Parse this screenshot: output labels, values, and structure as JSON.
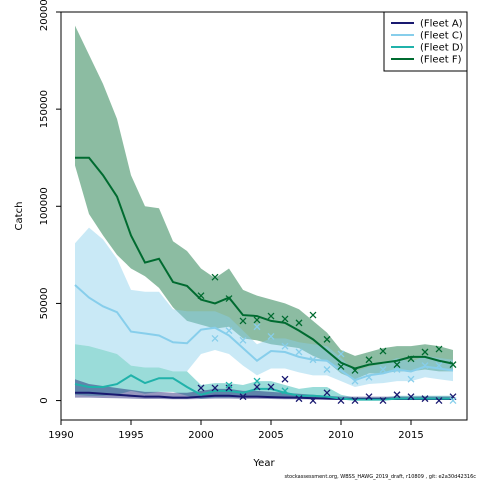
{
  "chart_data": {
    "type": "line",
    "title": "",
    "xlabel": "Year",
    "ylabel": "Catch",
    "xlim": [
      1990,
      2019
    ],
    "ylim": [
      -10000,
      200000
    ],
    "x_ticks": [
      1990,
      1995,
      2000,
      2005,
      2010,
      2015
    ],
    "y_ticks": [
      0,
      50000,
      100000,
      150000,
      200000
    ],
    "legend_position": "top-right",
    "footnote": "stockassessment.org, WBSS_HAWG_2019_draft, r10809 , git: e2a30d42316c",
    "x": [
      1991,
      1992,
      1993,
      1994,
      1995,
      1996,
      1997,
      1998,
      1999,
      2000,
      2001,
      2002,
      2003,
      2004,
      2005,
      2006,
      2007,
      2008,
      2009,
      2010,
      2011,
      2012,
      2013,
      2014,
      2015,
      2016,
      2017,
      2018
    ],
    "series": [
      {
        "name": "(Fleet A)",
        "color": "#191970",
        "values": [
          4000,
          4000,
          3500,
          3000,
          2500,
          2000,
          2000,
          1500,
          1500,
          2000,
          2500,
          2500,
          2000,
          2000,
          1800,
          1600,
          1500,
          1200,
          1000,
          800,
          800,
          800,
          800,
          800,
          800,
          800,
          800,
          800
        ],
        "lower": [
          1500,
          1500,
          1300,
          1200,
          1000,
          800,
          800,
          700,
          700,
          800,
          1000,
          1000,
          900,
          900,
          800,
          700,
          700,
          600,
          500,
          400,
          400,
          400,
          400,
          400,
          400,
          400,
          400,
          400
        ],
        "upper": [
          11000,
          8500,
          7500,
          6500,
          5500,
          4500,
          4500,
          4000,
          4000,
          5000,
          6000,
          6000,
          5000,
          5000,
          4500,
          4000,
          3500,
          3000,
          2500,
          2000,
          2000,
          2000,
          2000,
          2000,
          2000,
          2000,
          2000,
          2000
        ],
        "observed": [
          null,
          null,
          null,
          null,
          null,
          null,
          null,
          null,
          null,
          6500,
          6500,
          6500,
          2000,
          7000,
          7000,
          11000,
          1000,
          0,
          4000,
          0,
          0,
          2000,
          0,
          3000,
          2000,
          1000,
          0,
          2000
        ]
      },
      {
        "name": "(Fleet C)",
        "color": "#87CEEB",
        "values": [
          59500,
          53000,
          48500,
          45500,
          35500,
          34500,
          33500,
          30000,
          29500,
          36500,
          37500,
          33500,
          27000,
          20500,
          25500,
          25000,
          22500,
          21000,
          20500,
          15500,
          10500,
          13000,
          14000,
          16000,
          15000,
          17500,
          16500,
          15500
        ],
        "lower": [
          29000,
          28000,
          26000,
          24000,
          18000,
          17000,
          17000,
          15000,
          15000,
          24000,
          26000,
          24000,
          18000,
          13000,
          16500,
          16500,
          14500,
          13000,
          13000,
          10000,
          7000,
          8500,
          9000,
          10000,
          10000,
          12000,
          11000,
          10000
        ],
        "upper": [
          81000,
          89000,
          83000,
          73000,
          57000,
          56000,
          56000,
          47000,
          46000,
          46000,
          46000,
          43000,
          36000,
          29000,
          32000,
          32000,
          30000,
          29000,
          28000,
          22000,
          15000,
          17500,
          19000,
          22000,
          20000,
          23000,
          22000,
          21000
        ],
        "observed": [
          null,
          null,
          null,
          null,
          null,
          null,
          null,
          null,
          null,
          null,
          32000,
          36000,
          31000,
          38000,
          33000,
          28000,
          25000,
          21000,
          16000,
          24000,
          10000,
          12000,
          16000,
          16000,
          11000,
          18000,
          18000,
          0
        ]
      },
      {
        "name": "(Fleet D)",
        "color": "#20B2AA",
        "values": [
          8500,
          7000,
          7000,
          8500,
          13000,
          9000,
          11500,
          11500,
          7000,
          3000,
          5000,
          5000,
          4000,
          6000,
          6000,
          4000,
          2500,
          2500,
          2000,
          1000,
          500,
          500,
          500,
          1000,
          1000,
          1000,
          1000,
          1000
        ],
        "lower": [
          3000,
          2500,
          2500,
          3000,
          5000,
          3500,
          4500,
          4500,
          2500,
          1000,
          1500,
          1500,
          1500,
          2000,
          2000,
          1500,
          1000,
          1000,
          800,
          400,
          200,
          200,
          200,
          400,
          400,
          400,
          400,
          400
        ],
        "upper": [
          29000,
          28000,
          26000,
          24000,
          18000,
          17000,
          17000,
          15000,
          15000,
          8000,
          9000,
          9000,
          8000,
          10000,
          10000,
          8000,
          6000,
          7000,
          7000,
          3000,
          1500,
          1500,
          1500,
          2500,
          2500,
          2500,
          2500,
          2500
        ],
        "observed": [
          null,
          null,
          null,
          null,
          null,
          null,
          null,
          null,
          null,
          null,
          null,
          8000,
          null,
          10000,
          null,
          5000,
          null,
          null,
          null,
          null,
          null,
          null,
          null,
          null,
          null,
          null,
          null,
          null
        ]
      },
      {
        "name": "(Fleet F)",
        "color": "#006B30",
        "values": [
          125000,
          125000,
          116000,
          105000,
          85000,
          71000,
          73000,
          61000,
          59000,
          52000,
          50000,
          53000,
          44000,
          43500,
          41000,
          40000,
          36000,
          31500,
          25500,
          19500,
          16500,
          18500,
          19500,
          20500,
          22500,
          22500,
          20500,
          19000
        ],
        "lower": [
          121000,
          96000,
          85000,
          75000,
          68000,
          64000,
          58000,
          48000,
          41000,
          39000,
          37000,
          38000,
          32000,
          31000,
          29000,
          28000,
          27000,
          23000,
          20000,
          14000,
          11000,
          14000,
          14000,
          15000,
          15000,
          16000,
          15000,
          15000
        ],
        "upper": [
          193000,
          178000,
          163000,
          145000,
          116000,
          100000,
          99000,
          82000,
          77000,
          68000,
          63000,
          68000,
          57000,
          54000,
          52000,
          50000,
          47000,
          41000,
          35000,
          26000,
          23000,
          25000,
          27000,
          28000,
          28000,
          29000,
          28000,
          26000
        ],
        "observed": [
          null,
          null,
          null,
          null,
          null,
          null,
          null,
          null,
          null,
          54000,
          63500,
          52500,
          41000,
          41500,
          43500,
          42000,
          40000,
          44000,
          31500,
          17500,
          15500,
          21000,
          25500,
          18500,
          21500,
          25000,
          26500,
          18500
        ]
      }
    ]
  }
}
